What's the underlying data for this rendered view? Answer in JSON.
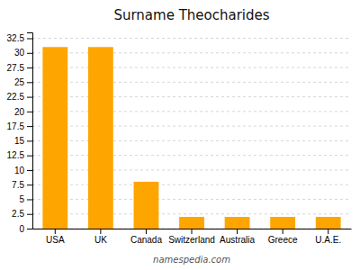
{
  "chart_data": {
    "type": "bar",
    "title": "Surname Theocharides",
    "categories": [
      "USA",
      "UK",
      "Canada",
      "Switzerland",
      "Australia",
      "Greece",
      "U.A.E."
    ],
    "values": [
      31,
      31,
      8,
      2,
      2,
      2,
      2
    ],
    "color": "#FFA500",
    "ylim": [
      0,
      33.5
    ],
    "yticks": [
      0,
      2.5,
      5,
      7.5,
      10,
      12.5,
      15,
      17.5,
      20,
      22.5,
      25,
      27.5,
      30,
      32.5
    ],
    "grid": true,
    "annotation": "namespedia.com"
  }
}
